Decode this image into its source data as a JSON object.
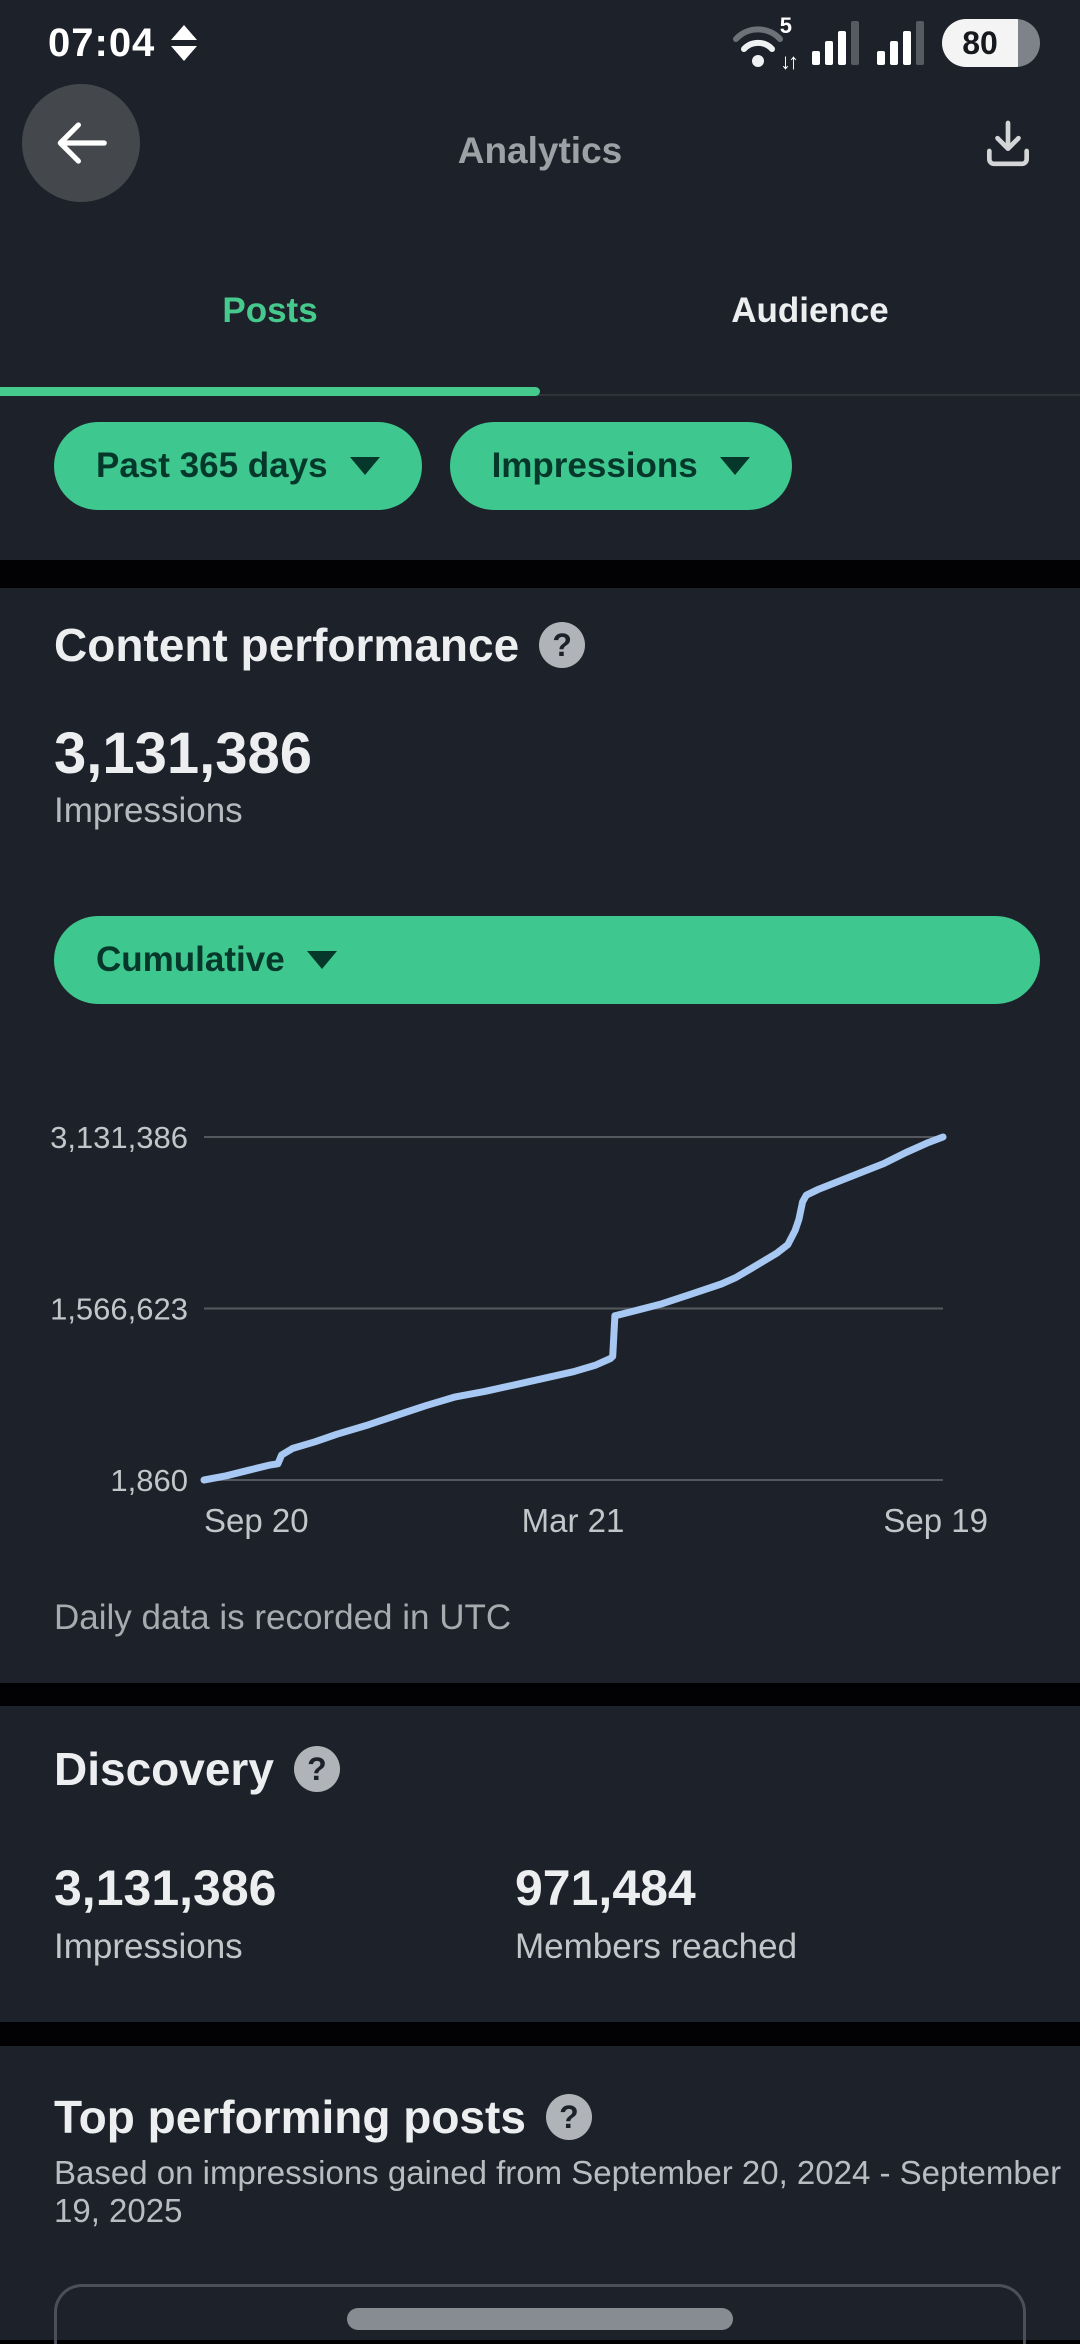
{
  "status_bar": {
    "time": "07:04",
    "battery": "80",
    "wifi_label": "5",
    "wifi_arrows": "↓↑"
  },
  "header": {
    "title": "Analytics"
  },
  "tabs": [
    {
      "label": "Posts",
      "active": true
    },
    {
      "label": "Audience",
      "active": false
    }
  ],
  "filters": {
    "date_range": "Past 365 days",
    "metric": "Impressions"
  },
  "content_performance": {
    "heading": "Content performance",
    "value": "3,131,386",
    "value_label": "Impressions",
    "view_mode": "Cumulative",
    "footnote": "Daily data is recorded in UTC"
  },
  "chart_data": {
    "type": "line",
    "title": "Cumulative impressions, past 365 days",
    "x_tick_labels": [
      "Sep 20",
      "Mar 21",
      "Sep 19"
    ],
    "y_tick_labels": [
      "3,131,386",
      "1,566,623",
      "1,860"
    ],
    "y_ticks": [
      3131386,
      1566623,
      1860
    ],
    "ylim": [
      1860,
      3131386
    ],
    "grid": true,
    "legend": "none",
    "line_color": "#a6c8f2",
    "points": [
      [
        0.0,
        1860
      ],
      [
        0.03,
        40000
      ],
      [
        0.06,
        90000
      ],
      [
        0.09,
        140000
      ],
      [
        0.1,
        150000
      ],
      [
        0.105,
        230000
      ],
      [
        0.12,
        290000
      ],
      [
        0.15,
        350000
      ],
      [
        0.18,
        420000
      ],
      [
        0.22,
        500000
      ],
      [
        0.26,
        590000
      ],
      [
        0.3,
        680000
      ],
      [
        0.34,
        760000
      ],
      [
        0.38,
        810000
      ],
      [
        0.42,
        870000
      ],
      [
        0.46,
        930000
      ],
      [
        0.5,
        990000
      ],
      [
        0.53,
        1050000
      ],
      [
        0.55,
        1110000
      ],
      [
        0.553,
        1130000
      ],
      [
        0.556,
        1500000
      ],
      [
        0.58,
        1540000
      ],
      [
        0.62,
        1610000
      ],
      [
        0.66,
        1700000
      ],
      [
        0.7,
        1790000
      ],
      [
        0.72,
        1850000
      ],
      [
        0.74,
        1930000
      ],
      [
        0.76,
        2010000
      ],
      [
        0.775,
        2070000
      ],
      [
        0.79,
        2150000
      ],
      [
        0.8,
        2280000
      ],
      [
        0.805,
        2380000
      ],
      [
        0.81,
        2540000
      ],
      [
        0.815,
        2600000
      ],
      [
        0.83,
        2650000
      ],
      [
        0.86,
        2730000
      ],
      [
        0.89,
        2810000
      ],
      [
        0.92,
        2890000
      ],
      [
        0.95,
        2990000
      ],
      [
        0.98,
        3080000
      ],
      [
        1.0,
        3131386
      ]
    ]
  },
  "discovery": {
    "heading": "Discovery",
    "stats": [
      {
        "value": "3,131,386",
        "label": "Impressions"
      },
      {
        "value": "971,484",
        "label": "Members reached"
      }
    ]
  },
  "top_posts": {
    "heading": "Top performing posts",
    "subtitle": "Based on impressions gained from September 20, 2024 - September 19, 2025"
  },
  "icons": {
    "help": "?"
  },
  "colors": {
    "accent_green": "#3ec78e",
    "background": "#1d222a",
    "chart_line": "#a6c8f2",
    "gridline": "#55595f"
  }
}
